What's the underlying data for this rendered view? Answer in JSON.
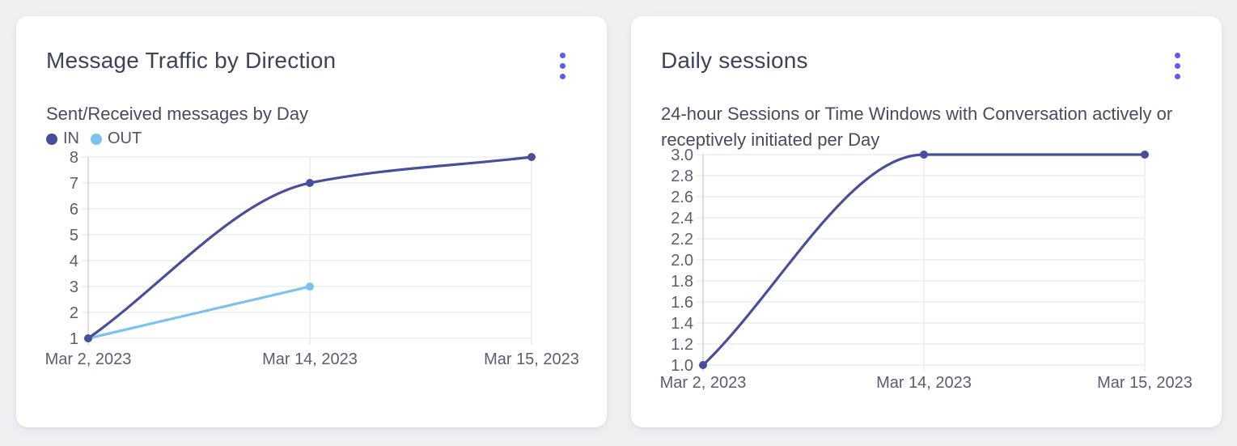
{
  "colors": {
    "page_background": "#f0f0f3",
    "card_background": "#ffffff",
    "menu_accent": "#5b5bef",
    "title_text": "#3f4358",
    "subtitle_text": "#474b5e",
    "tick_text": "#5a5e70",
    "grid_line": "#e8e9ec",
    "axis_line": "#c6c7ce",
    "series_in": "#484e9b",
    "series_out": "#7cc2f0"
  },
  "cards": [
    {
      "title": "Message Traffic by Direction",
      "subtitle": "Sent/Received messages by Day",
      "menu_icon": "kebab-menu-icon",
      "legend": [
        {
          "label": "IN",
          "color": "#484e9b"
        },
        {
          "label": "OUT",
          "color": "#7cc2f0"
        }
      ]
    },
    {
      "title": "Daily sessions",
      "subtitle": "24-hour Sessions or Time Windows with Conversation actively or receptively initiated per Day",
      "menu_icon": "kebab-menu-icon"
    }
  ],
  "chart_data": [
    {
      "type": "line",
      "title": "Message Traffic by Direction",
      "subtitle": "Sent/Received messages by Day",
      "categories": [
        "Mar 2, 2023",
        "Mar 14, 2023",
        "Mar 15, 2023"
      ],
      "series": [
        {
          "name": "IN",
          "color": "#484e9b",
          "values": [
            1,
            7,
            8
          ]
        },
        {
          "name": "OUT",
          "color": "#7cc2f0",
          "values": [
            1,
            3,
            null
          ]
        }
      ],
      "xlabel": "",
      "ylabel": "",
      "ylim": [
        1,
        8
      ],
      "yticks": [
        1,
        2,
        3,
        4,
        5,
        6,
        7,
        8
      ],
      "ytick_labels": [
        "1",
        "2",
        "3",
        "4",
        "5",
        "6",
        "7",
        "8"
      ],
      "grid": true,
      "legend_position": "top-left",
      "curve": "monotone",
      "x_scale": "point-equal-spacing"
    },
    {
      "type": "line",
      "title": "Daily sessions",
      "subtitle": "24-hour Sessions or Time Windows with Conversation actively or receptively initiated per Day",
      "categories": [
        "Mar 2, 2023",
        "Mar 14, 2023",
        "Mar 15, 2023"
      ],
      "series": [
        {
          "name": "Daily sessions",
          "color": "#484e9b",
          "values": [
            1,
            3,
            3
          ]
        }
      ],
      "xlabel": "",
      "ylabel": "",
      "ylim": [
        1,
        3
      ],
      "yticks": [
        1.0,
        1.2,
        1.4,
        1.6,
        1.8,
        2.0,
        2.2,
        2.4,
        2.6,
        2.8,
        3.0
      ],
      "ytick_labels": [
        "1.0",
        "1.2",
        "1.4",
        "1.6",
        "1.8",
        "2.0",
        "2.2",
        "2.4",
        "2.6",
        "2.8",
        "3.0"
      ],
      "grid": true,
      "legend_position": "none",
      "curve": "monotone",
      "x_scale": "point-equal-spacing"
    }
  ]
}
